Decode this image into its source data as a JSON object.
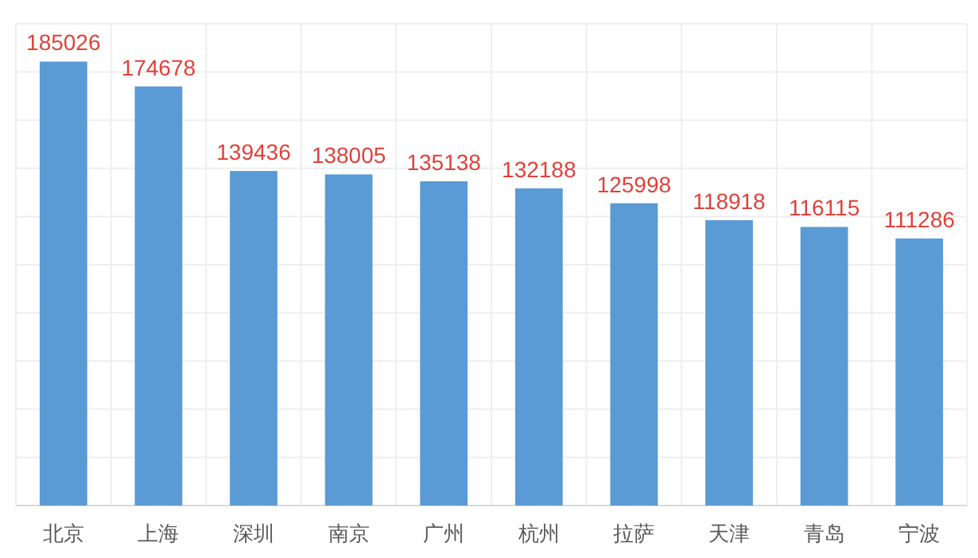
{
  "chart_data": {
    "type": "bar",
    "categories": [
      "北京",
      "上海",
      "深圳",
      "南京",
      "广州",
      "杭州",
      "拉萨",
      "天津",
      "青岛",
      "宁波"
    ],
    "values": [
      185026,
      174678,
      139436,
      138005,
      135138,
      132188,
      125998,
      118918,
      116115,
      111286
    ],
    "color": "#5b9bd5",
    "data_labels": true,
    "grid": true
  }
}
